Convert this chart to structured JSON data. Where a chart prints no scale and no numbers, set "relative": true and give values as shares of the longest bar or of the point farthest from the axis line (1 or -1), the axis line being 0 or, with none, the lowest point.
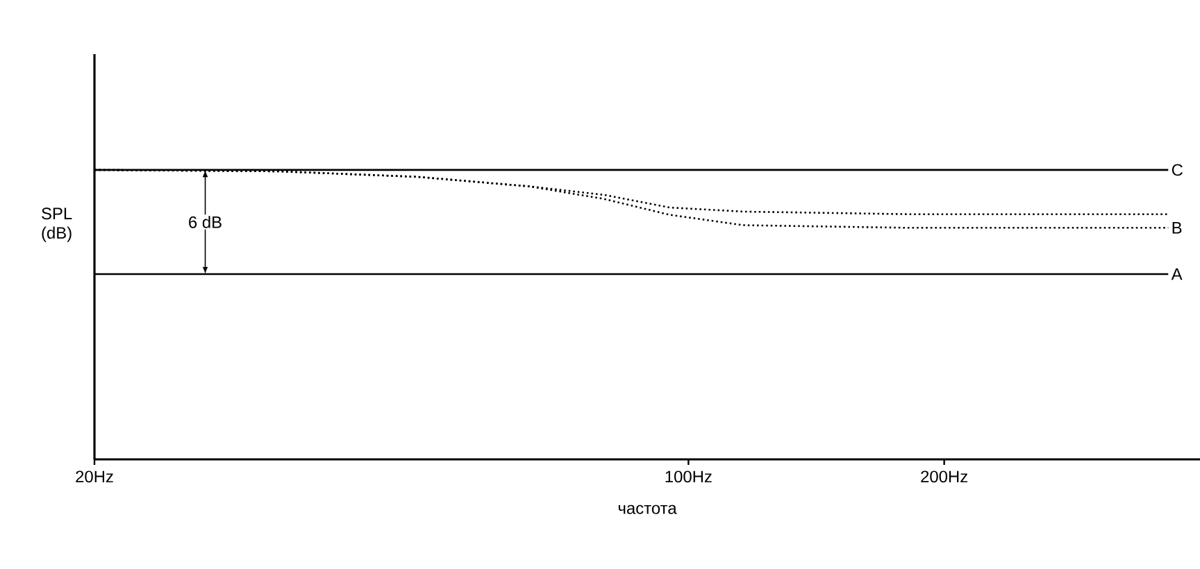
{
  "chart_data": {
    "type": "line",
    "relative": true,
    "log": "x",
    "tick_labels": "x",
    "xlabel": "частота",
    "ylabel": "SPL (dB)",
    "xlim": [
      20,
      400
    ],
    "xticks": [
      {
        "value": 20,
        "label": "20Hz"
      },
      {
        "value": 100,
        "label": "100Hz"
      },
      {
        "value": 200,
        "label": "200Hz"
      }
    ],
    "annotations": [
      {
        "text": "6 dB",
        "x": 27,
        "y": 0.82
      }
    ],
    "series": [
      {
        "name": "C",
        "color": "#000000",
        "line_style": "solid",
        "x": [
          20,
          367
        ],
        "values": [
          1,
          1
        ]
      },
      {
        "name": "A",
        "color": "#000000",
        "line_style": "solid",
        "x": [
          20,
          367
        ],
        "values": [
          0.64,
          0.64
        ]
      },
      {
        "color": "#000000",
        "line_style": "dotted",
        "x": [
          20,
          33,
          48,
          65,
          79.5,
          95,
          116,
          181,
          367
        ],
        "values": [
          1,
          0.995,
          0.976,
          0.943,
          0.914,
          0.87,
          0.856,
          0.847,
          0.847
        ]
      },
      {
        "name": "B",
        "color": "#000000",
        "line_style": "dotted",
        "x": [
          20,
          33,
          48,
          65,
          79.5,
          95,
          116,
          181,
          367
        ],
        "values": [
          1,
          0.995,
          0.976,
          0.943,
          0.9,
          0.845,
          0.809,
          0.8,
          0.8
        ]
      }
    ]
  }
}
